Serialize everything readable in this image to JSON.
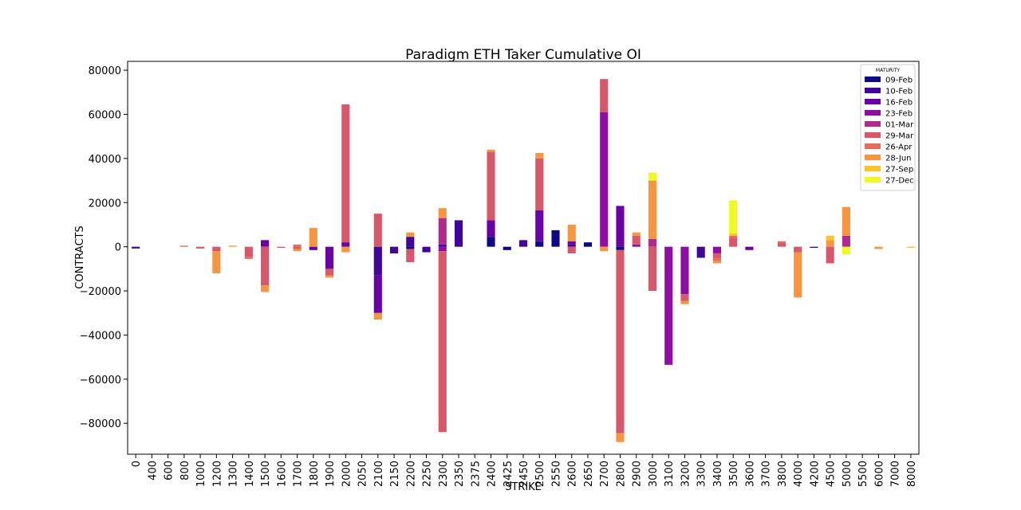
{
  "chart_data": {
    "type": "bar",
    "stacked": true,
    "title": "Paradigm ETH Taker Cumulative OI",
    "xlabel": "STRIKE",
    "ylabel": "CONTRACTS",
    "ylim": [
      -94000,
      84000
    ],
    "yticks": [
      -80000,
      -60000,
      -40000,
      -20000,
      0,
      20000,
      40000,
      60000,
      80000
    ],
    "legend_title": "MATURITY",
    "legend_position": "top-right",
    "categories": [
      "0",
      "400",
      "600",
      "800",
      "1000",
      "1200",
      "1300",
      "1400",
      "1500",
      "1600",
      "1700",
      "1800",
      "1900",
      "2000",
      "2050",
      "2100",
      "2150",
      "2200",
      "2250",
      "2300",
      "2350",
      "2375",
      "2400",
      "2425",
      "2450",
      "2500",
      "2550",
      "2600",
      "2650",
      "2700",
      "2800",
      "2900",
      "3000",
      "3100",
      "3200",
      "3300",
      "3400",
      "3500",
      "3600",
      "3700",
      "3800",
      "4000",
      "4200",
      "4500",
      "5000",
      "5500",
      "6000",
      "7000",
      "8000"
    ],
    "series": [
      {
        "name": "09-Feb",
        "color": "#0d0887",
        "values": [
          0,
          0,
          0,
          0,
          0,
          0,
          0,
          0,
          0,
          0,
          0,
          0,
          0,
          0,
          0,
          0,
          0,
          -1000,
          0,
          0,
          0,
          0,
          4500,
          -1500,
          0,
          2500,
          7500,
          0,
          2000,
          0,
          -1500,
          0,
          0,
          0,
          0,
          0,
          0,
          0,
          0,
          0,
          0,
          0,
          0,
          0,
          0,
          0,
          0,
          0,
          0
        ]
      },
      {
        "name": "10-Feb",
        "color": "#41049d",
        "values": [
          -800,
          0,
          0,
          0,
          0,
          0,
          0,
          0,
          0,
          0,
          0,
          0,
          0,
          0,
          0,
          -13000,
          -3000,
          4500,
          -2500,
          1000,
          12000,
          0,
          0,
          0,
          3000,
          0,
          0,
          1000,
          0,
          0,
          0,
          0,
          0,
          0,
          0,
          -5000,
          0,
          0,
          0,
          0,
          0,
          0,
          -500,
          0,
          0,
          0,
          0,
          0,
          0
        ]
      },
      {
        "name": "16-Feb",
        "color": "#6a00a8",
        "values": [
          0,
          0,
          0,
          0,
          0,
          0,
          0,
          0,
          3000,
          0,
          0,
          -1500,
          -10000,
          2000,
          0,
          -17000,
          0,
          0,
          0,
          0,
          0,
          0,
          7500,
          0,
          0,
          14000,
          0,
          1500,
          0,
          0,
          18500,
          0,
          0,
          0,
          0,
          0,
          0,
          0,
          -1500,
          0,
          0,
          0,
          0,
          0,
          0,
          0,
          0,
          0,
          0
        ]
      },
      {
        "name": "23-Feb",
        "color": "#8f0da4",
        "values": [
          0,
          0,
          0,
          0,
          0,
          0,
          0,
          0,
          0,
          0,
          0,
          0,
          0,
          0,
          0,
          0,
          0,
          0,
          0,
          -2000,
          0,
          0,
          0,
          0,
          0,
          0,
          0,
          0,
          0,
          61000,
          0,
          1000,
          0,
          -53500,
          -21500,
          0,
          -3000,
          0,
          0,
          0,
          0,
          0,
          0,
          0,
          0,
          0,
          0,
          0,
          0
        ]
      },
      {
        "name": "01-Mar",
        "color": "#b12a90",
        "values": [
          0,
          0,
          0,
          0,
          0,
          0,
          0,
          0,
          0,
          0,
          0,
          0,
          0,
          0,
          0,
          0,
          0,
          0,
          0,
          12000,
          0,
          0,
          0,
          0,
          0,
          0,
          0,
          0,
          0,
          0,
          0,
          0,
          3500,
          0,
          0,
          0,
          0,
          0,
          0,
          0,
          0,
          0,
          0,
          0,
          5000,
          0,
          0,
          0,
          0
        ]
      },
      {
        "name": "29-Mar",
        "color": "#cc4778",
        "values": [
          0,
          0,
          0,
          0,
          0,
          0,
          0,
          0,
          0,
          0,
          0,
          0,
          0,
          0,
          0,
          0,
          0,
          0,
          0,
          0,
          0,
          0,
          0,
          0,
          0,
          0,
          0,
          0,
          0,
          0,
          0,
          0,
          0,
          0,
          0,
          0,
          0,
          0,
          0,
          0,
          0,
          0,
          0,
          0,
          0,
          0,
          0,
          0,
          0
        ]
      },
      {
        "name": "29-Mar",
        "color": "#d8576b",
        "values": [
          0,
          0,
          0,
          0,
          -800,
          -2000,
          0,
          -4500,
          -17500,
          -500,
          -1000,
          0,
          -3000,
          62500,
          0,
          15000,
          0,
          -6000,
          0,
          -82000,
          0,
          0,
          31000,
          0,
          0,
          23500,
          0,
          -3000,
          0,
          15000,
          -83000,
          4000,
          -20000,
          0,
          -3000,
          0,
          -2000,
          4000,
          0,
          0,
          1500,
          -2500,
          0,
          -7500,
          0,
          0,
          0,
          0,
          0
        ]
      },
      {
        "name": "26-Apr",
        "color": "#e66c5c",
        "values": [
          0,
          0,
          0,
          500,
          0,
          0,
          0,
          -1000,
          0,
          0,
          1000,
          0,
          0,
          0,
          0,
          0,
          0,
          0,
          0,
          0,
          0,
          0,
          0,
          0,
          0,
          0,
          0,
          0,
          0,
          0,
          0,
          0,
          0,
          0,
          0,
          0,
          -1500,
          1000,
          0,
          0,
          1000,
          0,
          0,
          0,
          0,
          0,
          0,
          0,
          0
        ]
      },
      {
        "name": "28-Jun",
        "color": "#f89540",
        "values": [
          0,
          0,
          0,
          0,
          0,
          -10000,
          500,
          0,
          -3000,
          0,
          -1000,
          8500,
          -1000,
          -2500,
          0,
          -3000,
          0,
          2000,
          0,
          4500,
          0,
          0,
          1000,
          0,
          0,
          2500,
          0,
          7500,
          0,
          -2000,
          -4000,
          1500,
          26500,
          0,
          -1500,
          0,
          -1000,
          0,
          0,
          0,
          0,
          -20500,
          0,
          3000,
          13000,
          0,
          -1000,
          0,
          0
        ]
      },
      {
        "name": "27-Sep",
        "color": "#fdc328",
        "values": [
          0,
          0,
          0,
          0,
          0,
          0,
          0,
          0,
          0,
          0,
          0,
          0,
          0,
          0,
          0,
          0,
          0,
          0,
          0,
          0,
          0,
          0,
          0,
          0,
          0,
          0,
          0,
          0,
          0,
          0,
          0,
          0,
          0,
          0,
          0,
          0,
          0,
          1000,
          0,
          0,
          0,
          0,
          0,
          2000,
          0,
          0,
          0,
          0,
          -500
        ]
      },
      {
        "name": "27-Dec",
        "color": "#f0f921",
        "values": [
          0,
          0,
          0,
          0,
          0,
          0,
          0,
          0,
          0,
          0,
          0,
          0,
          0,
          0,
          0,
          0,
          0,
          0,
          0,
          0,
          0,
          0,
          0,
          0,
          0,
          0,
          0,
          0,
          0,
          0,
          0,
          0,
          3500,
          0,
          0,
          0,
          0,
          15000,
          0,
          0,
          0,
          0,
          0,
          0,
          -3500,
          0,
          0,
          0,
          0
        ]
      }
    ],
    "legend_entries": [
      {
        "name": "09-Feb",
        "color": "#0d0887"
      },
      {
        "name": "10-Feb",
        "color": "#41049d"
      },
      {
        "name": "16-Feb",
        "color": "#6a00a8"
      },
      {
        "name": "23-Feb",
        "color": "#8f0da4"
      },
      {
        "name": "01-Mar",
        "color": "#b12a90"
      },
      {
        "name": "29-Mar",
        "color": "#d8576b"
      },
      {
        "name": "26-Apr",
        "color": "#e66c5c"
      },
      {
        "name": "28-Jun",
        "color": "#f89540"
      },
      {
        "name": "27-Sep",
        "color": "#fdc328"
      },
      {
        "name": "27-Dec",
        "color": "#f0f921"
      }
    ]
  }
}
